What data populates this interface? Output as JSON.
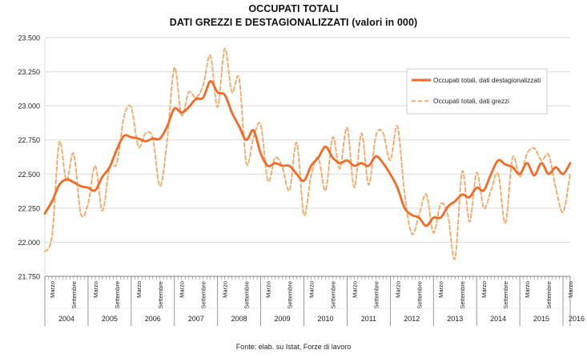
{
  "header": {
    "title": "OCCUPATI TOTALI",
    "subtitle": "DATI GREZZI E DESTAGIONALIZZATI (valori in 000)"
  },
  "source": "Fonte: elab. su Istat, Forze di lavoro",
  "colors": {
    "seasonal": "#f26a24",
    "raw": "#f7a560",
    "grid": "#d9d9d9",
    "axis": "#7f7f7f"
  },
  "chart_data": {
    "type": "line",
    "title": "OCCUPATI TOTALI",
    "subtitle": "DATI GREZZI E DESTAGIONALIZZATI (valori in 000)",
    "ylim": [
      21750,
      23500
    ],
    "yticks": [
      21750,
      22000,
      22250,
      22500,
      22750,
      23000,
      23250,
      23500
    ],
    "ytick_labels": [
      "21.750",
      "22.000",
      "22.250",
      "22.500",
      "22.750",
      "23.000",
      "23.250",
      "23.500"
    ],
    "grid": true,
    "legend_position": "top-right",
    "month_labels": {
      "march": "Marzo",
      "september": "Settembre"
    },
    "years": [
      "2004",
      "2005",
      "2006",
      "2007",
      "2008",
      "2009",
      "2010",
      "2011",
      "2012",
      "2013",
      "2014",
      "2015",
      "2016"
    ],
    "x_start": "2004-01",
    "x_end": "2016-03",
    "series": [
      {
        "name": "Occupati totali, dati destagionalizzati",
        "style": "solid",
        "x": [
          "2004-01",
          "2004-03",
          "2004-05",
          "2004-07",
          "2004-09",
          "2004-11",
          "2005-01",
          "2005-03",
          "2005-05",
          "2005-07",
          "2005-09",
          "2005-11",
          "2006-01",
          "2006-03",
          "2006-05",
          "2006-07",
          "2006-09",
          "2006-11",
          "2007-01",
          "2007-03",
          "2007-05",
          "2007-07",
          "2007-09",
          "2007-11",
          "2008-01",
          "2008-03",
          "2008-05",
          "2008-07",
          "2008-09",
          "2008-11",
          "2009-01",
          "2009-03",
          "2009-05",
          "2009-07",
          "2009-09",
          "2009-11",
          "2010-01",
          "2010-03",
          "2010-05",
          "2010-07",
          "2010-09",
          "2010-11",
          "2011-01",
          "2011-03",
          "2011-05",
          "2011-07",
          "2011-09",
          "2011-11",
          "2012-01",
          "2012-03",
          "2012-05",
          "2012-07",
          "2012-09",
          "2012-11",
          "2013-01",
          "2013-03",
          "2013-05",
          "2013-07",
          "2013-09",
          "2013-11",
          "2014-01",
          "2014-03",
          "2014-05",
          "2014-07",
          "2014-09",
          "2014-11",
          "2015-01",
          "2015-03",
          "2015-05",
          "2015-07",
          "2015-09",
          "2015-11",
          "2016-01",
          "2016-03"
        ],
        "values": [
          22210,
          22300,
          22420,
          22460,
          22440,
          22410,
          22400,
          22380,
          22480,
          22550,
          22680,
          22780,
          22770,
          22760,
          22740,
          22760,
          22760,
          22850,
          22980,
          22950,
          22990,
          23050,
          23060,
          23180,
          23100,
          23080,
          22950,
          22850,
          22750,
          22820,
          22650,
          22560,
          22580,
          22560,
          22560,
          22500,
          22450,
          22560,
          22620,
          22700,
          22620,
          22580,
          22600,
          22560,
          22580,
          22560,
          22630,
          22580,
          22500,
          22400,
          22250,
          22200,
          22180,
          22120,
          22180,
          22180,
          22260,
          22300,
          22350,
          22330,
          22400,
          22380,
          22500,
          22600,
          22570,
          22550,
          22500,
          22580,
          22490,
          22580,
          22500,
          22550,
          22500,
          22580
        ]
      },
      {
        "name": "Occupati totali, dati grezzi",
        "style": "dashed",
        "x": [
          "2004-01",
          "2004-03",
          "2004-05",
          "2004-07",
          "2004-09",
          "2004-11",
          "2005-01",
          "2005-03",
          "2005-05",
          "2005-07",
          "2005-09",
          "2005-11",
          "2006-01",
          "2006-03",
          "2006-05",
          "2006-07",
          "2006-09",
          "2006-11",
          "2007-01",
          "2007-03",
          "2007-05",
          "2007-07",
          "2007-09",
          "2007-11",
          "2008-01",
          "2008-03",
          "2008-05",
          "2008-07",
          "2008-09",
          "2008-11",
          "2009-01",
          "2009-03",
          "2009-05",
          "2009-07",
          "2009-09",
          "2009-11",
          "2010-01",
          "2010-03",
          "2010-05",
          "2010-07",
          "2010-09",
          "2010-11",
          "2011-01",
          "2011-03",
          "2011-05",
          "2011-07",
          "2011-09",
          "2011-11",
          "2012-01",
          "2012-03",
          "2012-05",
          "2012-07",
          "2012-09",
          "2012-11",
          "2013-01",
          "2013-03",
          "2013-05",
          "2013-07",
          "2013-09",
          "2013-11",
          "2014-01",
          "2014-03",
          "2014-05",
          "2014-07",
          "2014-09",
          "2014-11",
          "2015-01",
          "2015-03",
          "2015-05",
          "2015-07",
          "2015-09",
          "2015-11",
          "2016-01",
          "2016-03"
        ],
        "values": [
          21930,
          22050,
          22730,
          22450,
          22650,
          22210,
          22280,
          22560,
          22230,
          22550,
          22580,
          22920,
          22990,
          22700,
          22800,
          22760,
          22410,
          22750,
          23280,
          22930,
          23100,
          23060,
          23150,
          23370,
          22990,
          23420,
          23100,
          23200,
          22580,
          22770,
          22860,
          22450,
          22620,
          22550,
          22380,
          22730,
          22200,
          22490,
          22620,
          22380,
          22770,
          22540,
          22840,
          22400,
          22800,
          22420,
          22780,
          22800,
          22600,
          22850,
          22350,
          22060,
          22200,
          22350,
          22070,
          22280,
          22200,
          21880,
          22520,
          22150,
          22510,
          22250,
          22380,
          22500,
          22140,
          22620,
          22480,
          22650,
          22690,
          22600,
          22640,
          22400,
          22220,
          22500
        ]
      }
    ]
  }
}
